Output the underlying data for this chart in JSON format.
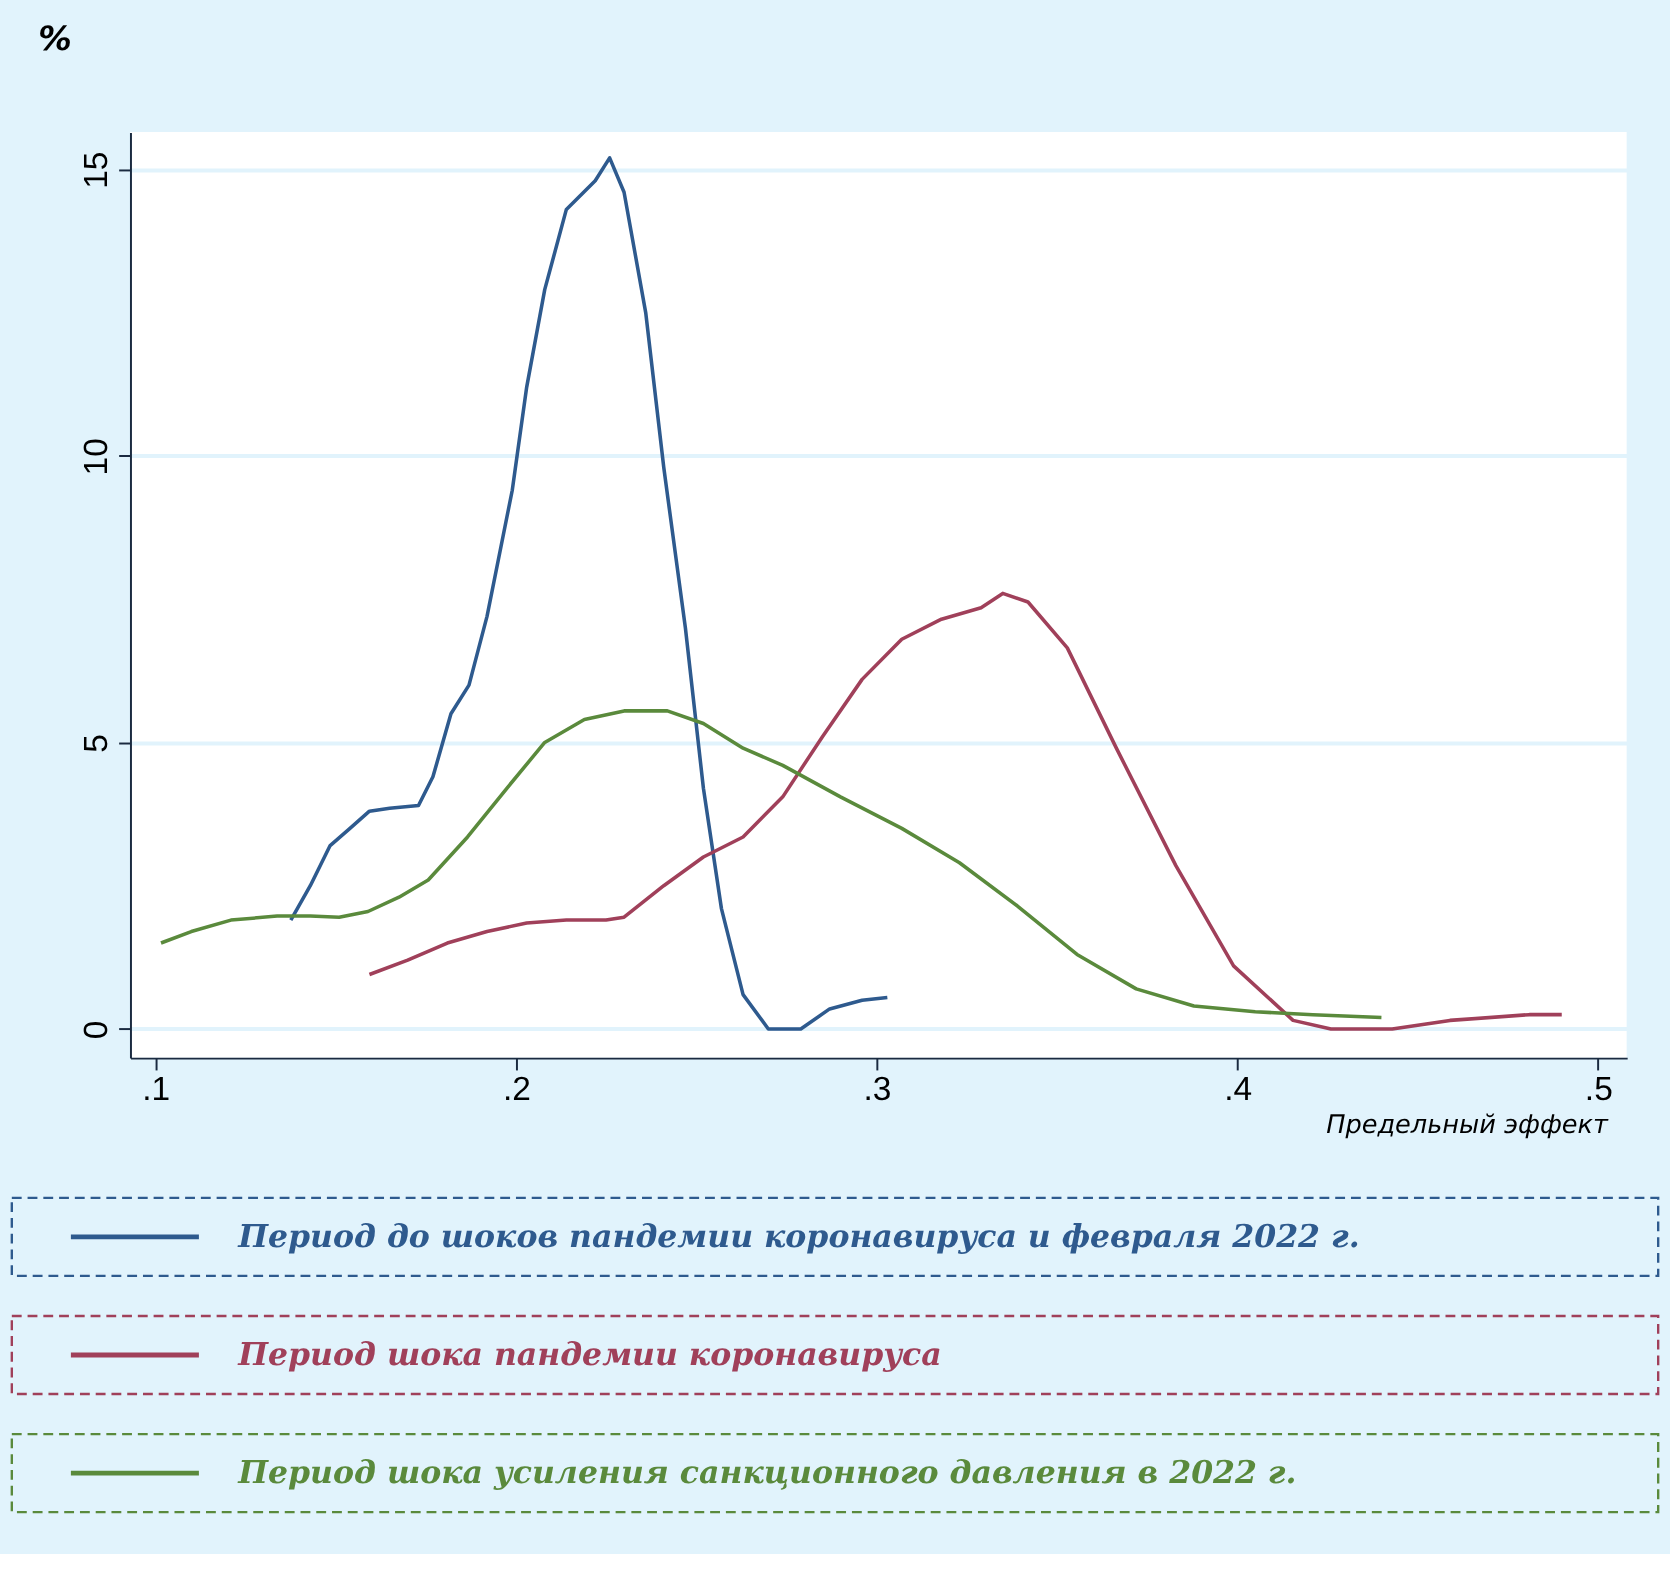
{
  "chart_data": {
    "type": "line",
    "ylabel": "%",
    "xlabel": "Предельный эффект",
    "xlim": [
      0.093,
      0.508
    ],
    "ylim": [
      -0.5,
      15.65
    ],
    "xticks": [
      {
        "value": 0.1,
        "label": ".1"
      },
      {
        "value": 0.2,
        "label": ".2"
      },
      {
        "value": 0.3,
        "label": ".3"
      },
      {
        "value": 0.4,
        "label": ".4"
      },
      {
        "value": 0.5,
        "label": ".5"
      }
    ],
    "yticks": [
      0,
      5,
      10,
      15
    ],
    "grid": "y",
    "legend": "bottom",
    "line_style": "solid",
    "marker": "none",
    "series": [
      {
        "name": "Период до шоков пандемии коронавируса и февраля 2022 г.",
        "color": "#2e5a8e",
        "x": [
          0.1376,
          0.143,
          0.1485,
          0.154,
          0.1594,
          0.165,
          0.173,
          0.177,
          0.182,
          0.187,
          0.192,
          0.199,
          0.203,
          0.208,
          0.214,
          0.222,
          0.226,
          0.23,
          0.236,
          0.241,
          0.247,
          0.252,
          0.257,
          0.263,
          0.27,
          0.279,
          0.287,
          0.296,
          0.303
        ],
        "values": [
          1.9,
          2.5,
          3.2,
          3.5,
          3.8,
          3.85,
          3.9,
          4.4,
          5.5,
          6.0,
          7.2,
          9.4,
          11.2,
          12.9,
          14.3,
          14.8,
          15.2,
          14.6,
          12.5,
          9.8,
          7.0,
          4.2,
          2.1,
          0.6,
          0,
          0,
          0.35,
          0.5,
          0.55
        ]
      },
      {
        "name": "Период шока пандемии коронавируса",
        "color": "#a0405a",
        "x": [
          0.1594,
          0.17,
          0.181,
          0.192,
          0.203,
          0.214,
          0.225,
          0.23,
          0.241,
          0.252,
          0.263,
          0.274,
          0.285,
          0.296,
          0.307,
          0.318,
          0.329,
          0.335,
          0.342,
          0.3529,
          0.3665,
          0.383,
          0.399,
          0.4155,
          0.426,
          0.443,
          0.459,
          0.481,
          0.49
        ],
        "values": [
          0.95,
          1.2,
          1.5,
          1.7,
          1.85,
          1.9,
          1.9,
          1.95,
          2.5,
          3.0,
          3.35,
          4.05,
          5.1,
          6.1,
          6.8,
          7.15,
          7.35,
          7.6,
          7.45,
          6.65,
          4.9,
          2.85,
          1.1,
          0.15,
          0,
          0,
          0.15,
          0.25,
          0.25
        ]
      },
      {
        "name": "Период шока усиления санкционного давления в 2022 г.",
        "color": "#5a8a3c",
        "x": [
          0.1016,
          0.11,
          0.121,
          0.1338,
          0.143,
          0.151,
          0.159,
          0.1676,
          0.1757,
          0.1866,
          0.1975,
          0.208,
          0.219,
          0.23,
          0.242,
          0.252,
          0.263,
          0.274,
          0.29,
          0.307,
          0.323,
          0.339,
          0.3556,
          0.372,
          0.388,
          0.405,
          0.421,
          0.44
        ],
        "values": [
          1.5,
          1.7,
          1.9,
          1.97,
          1.97,
          1.95,
          2.05,
          2.3,
          2.6,
          3.35,
          4.2,
          5.0,
          5.4,
          5.55,
          5.55,
          5.33,
          4.9,
          4.6,
          4.05,
          3.5,
          2.9,
          2.15,
          1.3,
          0.7,
          0.4,
          0.3,
          0.25,
          0.2
        ]
      }
    ]
  }
}
